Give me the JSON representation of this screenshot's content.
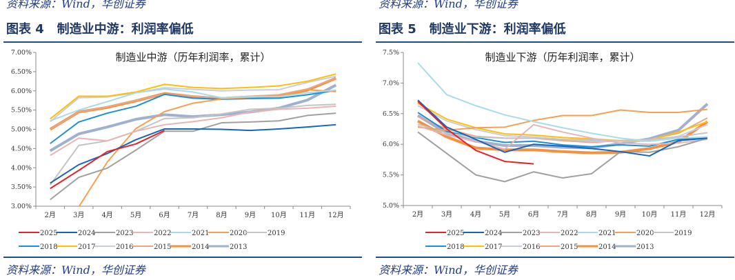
{
  "panels": [
    {
      "top_cut_text": "资料来源：Wind，华创证券",
      "figure_title": "图表 4   制造业中游：利润率偏低",
      "source": "资料来源：Wind，华创证券"
    },
    {
      "top_cut_text": "资料来源：Wind，华创证券",
      "figure_title": "图表 5   制造业下游：利润率偏低",
      "source": "资料来源：Wind，华创证券"
    }
  ],
  "chart_data": [
    {
      "type": "line",
      "title": "制造业中游（历年利润率，累计）",
      "categories": [
        "2月",
        "3月",
        "4月",
        "5月",
        "6月",
        "7月",
        "8月",
        "9月",
        "10月",
        "11月",
        "12月"
      ],
      "ylim": [
        3.0,
        7.0
      ],
      "yticks": [
        "3.00%",
        "3.50%",
        "4.00%",
        "4.50%",
        "5.00%",
        "5.50%",
        "6.00%",
        "6.50%",
        "7.00%"
      ],
      "ytick_values": [
        3.0,
        3.5,
        4.0,
        4.5,
        5.0,
        5.5,
        6.0,
        6.5,
        7.0
      ],
      "legend": "bottom",
      "grid": false,
      "series": [
        {
          "name": "2025",
          "color": "#e8202a",
          "width": 2,
          "values": [
            3.46,
            3.93,
            4.42,
            4.62,
            4.97,
            null,
            null,
            null,
            null,
            null,
            null
          ]
        },
        {
          "name": "2024",
          "color": "#1565c0",
          "width": 2,
          "values": [
            3.6,
            4.08,
            4.37,
            4.73,
            5.01,
            5.01,
            5.0,
            4.97,
            5.01,
            5.06,
            5.12
          ]
        },
        {
          "name": "2023",
          "color": "#a0a0a0",
          "width": 2,
          "values": [
            3.17,
            3.75,
            3.99,
            4.46,
            4.95,
            4.95,
            5.17,
            5.19,
            5.22,
            5.36,
            5.42
          ]
        },
        {
          "name": "2022",
          "color": "#e8b4b4",
          "width": 2,
          "values": [
            4.32,
            4.77,
            4.7,
            4.95,
            5.12,
            5.2,
            5.3,
            5.45,
            5.52,
            5.55,
            5.6
          ]
        },
        {
          "name": "2021",
          "color": "#a8dce8",
          "width": 2,
          "values": [
            5.22,
            5.5,
            5.72,
            5.95,
            6.05,
            5.97,
            5.82,
            5.85,
            5.85,
            5.95,
            6.02
          ]
        },
        {
          "name": "2020",
          "color": "#f5a050",
          "width": 2,
          "values": [
            null,
            2.98,
            4.15,
            5.02,
            5.46,
            5.68,
            5.79,
            5.83,
            5.88,
            6.03,
            5.98
          ]
        },
        {
          "name": "2019",
          "color": "#c4c4c4",
          "width": 2,
          "values": [
            3.55,
            4.58,
            4.7,
            4.95,
            5.28,
            5.3,
            5.4,
            5.52,
            5.55,
            5.62,
            5.65
          ]
        },
        {
          "name": "2018",
          "color": "#1a90d8",
          "width": 2,
          "values": [
            4.63,
            5.19,
            5.42,
            5.6,
            5.91,
            5.81,
            5.78,
            5.8,
            5.81,
            5.9,
            6.01
          ]
        },
        {
          "name": "2017",
          "color": "#ffc000",
          "width": 2,
          "values": [
            5.27,
            5.86,
            5.86,
            5.97,
            6.17,
            6.09,
            6.06,
            6.09,
            6.13,
            6.25,
            6.44
          ]
        },
        {
          "name": "2016",
          "color": "#c8cce8",
          "width": 2,
          "values": [
            5.2,
            5.82,
            5.84,
            5.95,
            6.08,
            6.04,
            6.0,
            6.02,
            6.03,
            6.22,
            6.38
          ]
        },
        {
          "name": "2015",
          "color": "#e8a888",
          "width": 2,
          "values": [
            5.0,
            5.45,
            5.58,
            5.75,
            5.92,
            5.86,
            5.82,
            5.86,
            5.9,
            6.05,
            6.33
          ]
        },
        {
          "name": "2014",
          "color": "#f59040",
          "width": 4,
          "values": [
            5.0,
            5.45,
            5.57,
            5.74,
            5.93,
            5.85,
            5.8,
            5.84,
            5.86,
            6.02,
            6.33
          ]
        },
        {
          "name": "2013",
          "color": "#a0b0d0",
          "width": 4,
          "values": [
            4.44,
            4.88,
            5.06,
            5.26,
            5.38,
            5.33,
            5.38,
            5.45,
            5.55,
            5.76,
            6.15
          ]
        }
      ]
    },
    {
      "type": "line",
      "title": "制造业下游（历年利润率，累计）",
      "categories": [
        "2月",
        "3月",
        "4月",
        "5月",
        "6月",
        "7月",
        "8月",
        "9月",
        "10月",
        "11月",
        "12月"
      ],
      "ylim": [
        5.0,
        7.5
      ],
      "yticks": [
        "5.0%",
        "5.5%",
        "6.0%",
        "6.5%",
        "7.0%",
        "7.5%"
      ],
      "ytick_values": [
        5.0,
        5.5,
        6.0,
        6.5,
        7.0,
        7.5
      ],
      "legend": "bottom",
      "grid": false,
      "series": [
        {
          "name": "2025",
          "color": "#e8202a",
          "width": 2,
          "values": [
            6.7,
            6.25,
            5.9,
            5.72,
            5.68,
            null,
            null,
            null,
            null,
            null,
            null
          ]
        },
        {
          "name": "2024",
          "color": "#1565c0",
          "width": 2,
          "values": [
            6.72,
            6.28,
            6.08,
            5.87,
            6.0,
            5.97,
            5.93,
            5.88,
            5.81,
            6.06,
            6.1
          ]
        },
        {
          "name": "2023",
          "color": "#a0a0a0",
          "width": 2,
          "values": [
            6.2,
            5.85,
            5.5,
            5.39,
            5.55,
            5.45,
            5.52,
            5.88,
            5.87,
            5.96,
            6.1
          ]
        },
        {
          "name": "2022",
          "color": "#e8b4b4",
          "width": 2,
          "values": [
            6.3,
            6.15,
            6.05,
            5.92,
            6.32,
            6.2,
            6.1,
            6.02,
            6.0,
            6.02,
            6.08
          ]
        },
        {
          "name": "2021",
          "color": "#a8dce8",
          "width": 2,
          "values": [
            7.33,
            6.81,
            6.63,
            6.48,
            6.37,
            6.27,
            6.18,
            6.1,
            6.05,
            6.1,
            6.12
          ]
        },
        {
          "name": "2020",
          "color": "#f5a050",
          "width": 2,
          "values": [
            6.28,
            6.23,
            6.27,
            6.28,
            6.39,
            6.47,
            6.47,
            6.56,
            6.52,
            6.52,
            6.57
          ]
        },
        {
          "name": "2019",
          "color": "#c4c4c4",
          "width": 2,
          "values": [
            6.33,
            6.18,
            6.12,
            6.1,
            6.1,
            6.08,
            6.07,
            6.06,
            6.08,
            6.12,
            6.19
          ]
        },
        {
          "name": "2018",
          "color": "#1a90d8",
          "width": 2,
          "values": [
            6.52,
            6.21,
            6.11,
            6.03,
            6.05,
            5.99,
            5.96,
            5.99,
            5.97,
            6.08,
            6.11
          ]
        },
        {
          "name": "2017",
          "color": "#ffc000",
          "width": 2,
          "values": [
            6.67,
            6.41,
            6.27,
            6.17,
            6.15,
            6.11,
            6.09,
            6.06,
            6.07,
            6.2,
            6.37
          ]
        },
        {
          "name": "2016",
          "color": "#c8cce8",
          "width": 2,
          "values": [
            6.63,
            6.38,
            6.24,
            6.14,
            6.12,
            6.08,
            6.05,
            6.05,
            6.05,
            6.13,
            6.32
          ]
        },
        {
          "name": "2015",
          "color": "#e8a888",
          "width": 2,
          "values": [
            6.45,
            6.25,
            6.13,
            6.1,
            6.1,
            6.06,
            6.03,
            6.06,
            6.08,
            6.18,
            6.43
          ]
        },
        {
          "name": "2014",
          "color": "#f59040",
          "width": 4,
          "values": [
            6.38,
            6.12,
            5.94,
            5.91,
            5.91,
            5.88,
            5.86,
            5.87,
            5.93,
            6.04,
            6.37
          ]
        },
        {
          "name": "2013",
          "color": "#a0b0d0",
          "width": 4,
          "values": [
            6.47,
            6.18,
            6.05,
            5.98,
            5.98,
            5.95,
            5.94,
            6.01,
            6.09,
            6.23,
            6.66
          ]
        }
      ]
    }
  ]
}
